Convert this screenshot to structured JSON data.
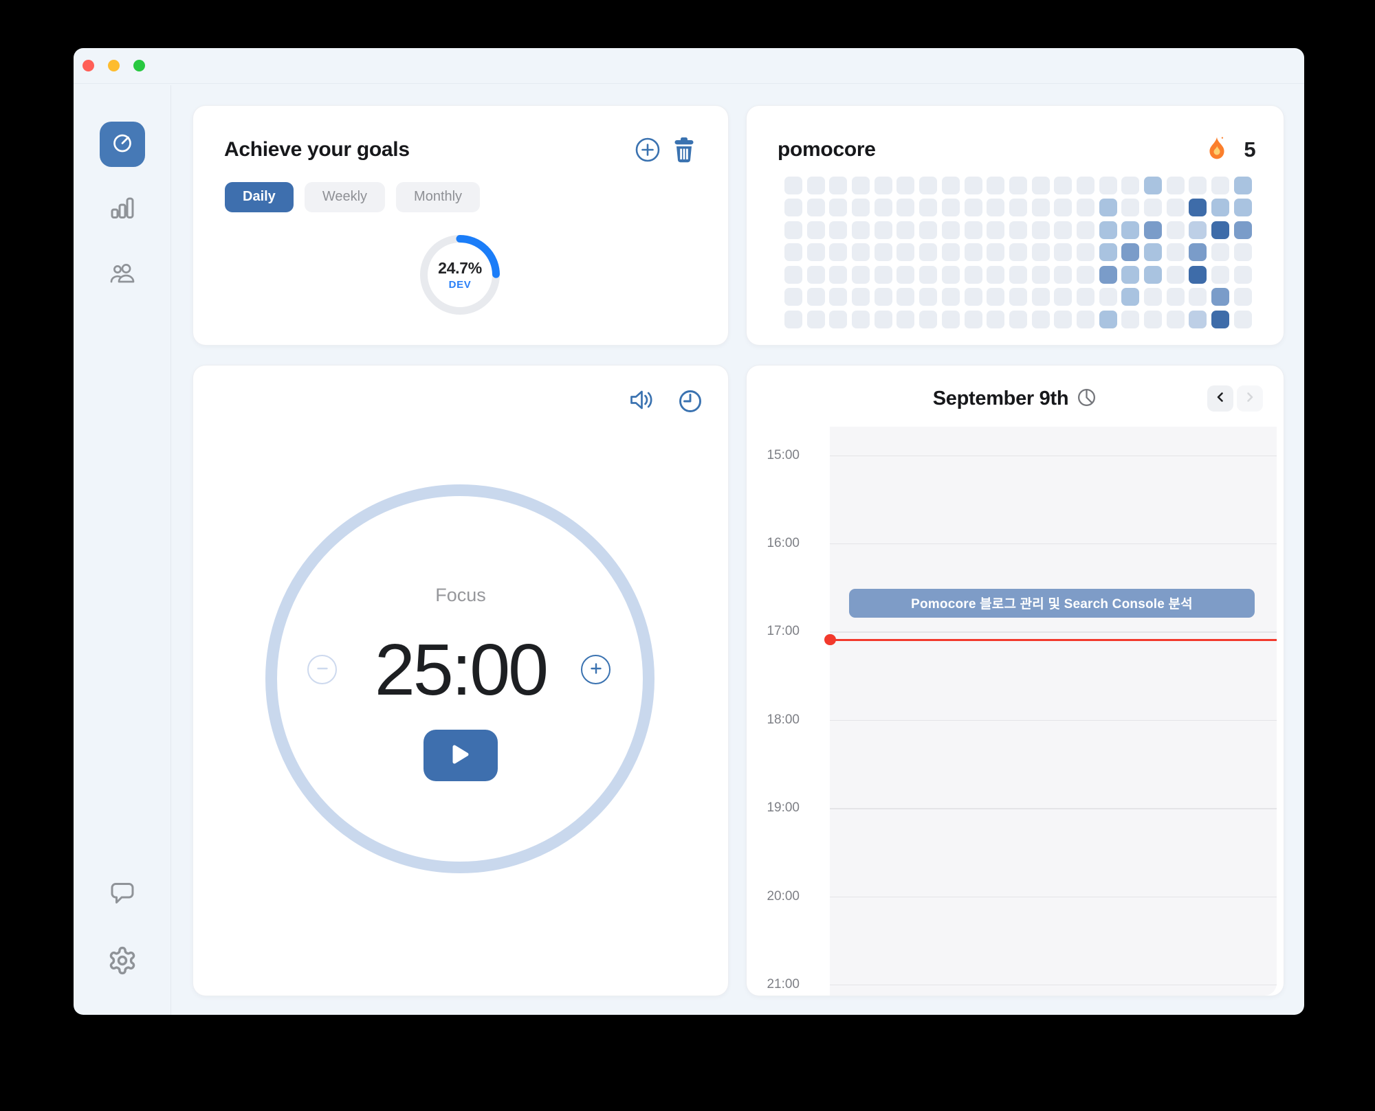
{
  "app": {
    "name": "pomocore"
  },
  "goals_card": {
    "title": "Achieve your goals",
    "tabs": [
      {
        "label": "Daily",
        "active": true
      },
      {
        "label": "Weekly",
        "active": false
      },
      {
        "label": "Monthly",
        "active": false
      }
    ],
    "progress": {
      "percent_label": "24.7%",
      "value": 24.7,
      "tag": "DEV"
    }
  },
  "streak_card": {
    "title": "pomocore",
    "streak_count": "5",
    "heatmap": {
      "cols": 21,
      "rows": 7,
      "palette": [
        "#e9edf3",
        "#bdcfe6",
        "#a9c3e0",
        "#7a9cc9",
        "#3e6ca9"
      ],
      "levels": [
        [
          0,
          0,
          0,
          0,
          0,
          0,
          0,
          0,
          0,
          0,
          0,
          0,
          0,
          0,
          0,
          0,
          2,
          0,
          0,
          0,
          2
        ],
        [
          0,
          0,
          0,
          0,
          0,
          0,
          0,
          0,
          0,
          0,
          0,
          0,
          0,
          0,
          2,
          0,
          0,
          0,
          4,
          2,
          2
        ],
        [
          0,
          0,
          0,
          0,
          0,
          0,
          0,
          0,
          0,
          0,
          0,
          0,
          0,
          0,
          2,
          2,
          3,
          0,
          1,
          4,
          3
        ],
        [
          0,
          0,
          0,
          0,
          0,
          0,
          0,
          0,
          0,
          0,
          0,
          0,
          0,
          0,
          2,
          3,
          2,
          0,
          3,
          0,
          0
        ],
        [
          0,
          0,
          0,
          0,
          0,
          0,
          0,
          0,
          0,
          0,
          0,
          0,
          0,
          0,
          3,
          2,
          2,
          0,
          4,
          0,
          0
        ],
        [
          0,
          0,
          0,
          0,
          0,
          0,
          0,
          0,
          0,
          0,
          0,
          0,
          0,
          0,
          0,
          2,
          0,
          0,
          0,
          3,
          0
        ],
        [
          0,
          0,
          0,
          0,
          0,
          0,
          0,
          0,
          0,
          0,
          0,
          0,
          0,
          0,
          2,
          0,
          0,
          0,
          1,
          4,
          0
        ]
      ]
    }
  },
  "timer_card": {
    "session_label": "Focus",
    "time": "25:00"
  },
  "schedule_card": {
    "title": "September 9th",
    "hours": [
      "15:00",
      "16:00",
      "17:00",
      "18:00",
      "19:00",
      "20:00",
      "21:00"
    ],
    "event": {
      "label": "Pomocore 블로그 관리 및 Search Console 분석"
    }
  },
  "colors": {
    "accent_blue": "#3a72b0",
    "active_tab_blue": "#3e6fae",
    "sidebar_active_blue": "#4679b6",
    "progress_blue": "#1b7df8",
    "event_bar_blue": "#7e9cc7",
    "now_line_red": "#f2392c",
    "timer_ring": "#c9d8ed"
  }
}
